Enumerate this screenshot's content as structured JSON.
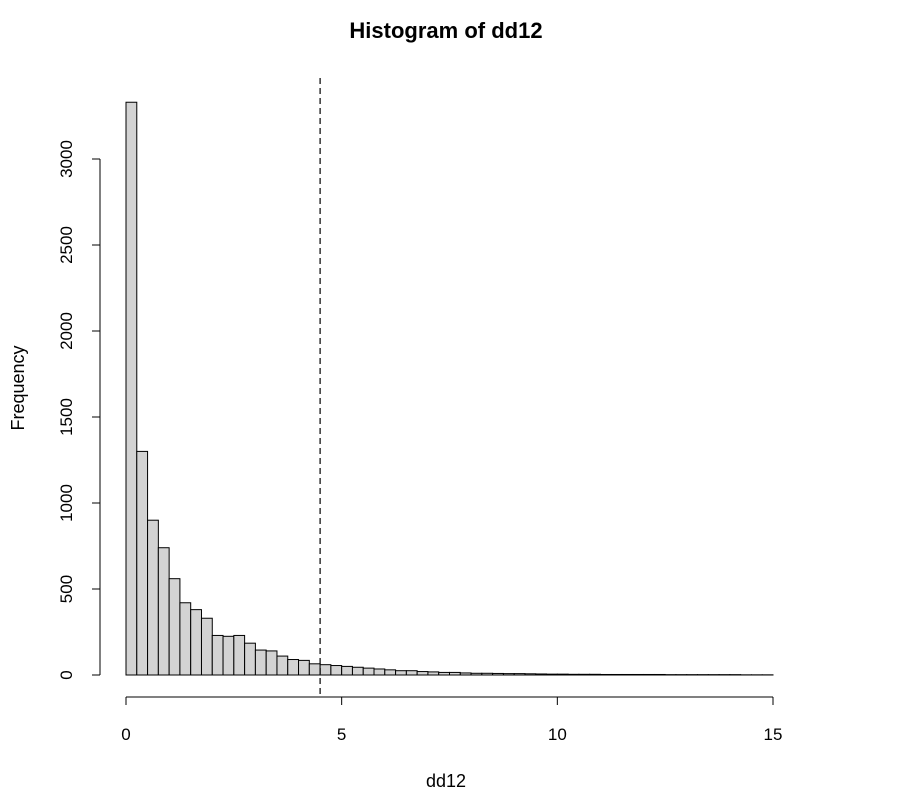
{
  "chart_data": {
    "type": "bar",
    "title": "Histogram of dd12",
    "xlabel": "dd12",
    "ylabel": "Frequency",
    "bin_width": 0.25,
    "bins_start": 0,
    "xlim": [
      0,
      15
    ],
    "ylim": [
      0,
      3000
    ],
    "x_ticks": [
      0,
      5,
      10,
      15
    ],
    "y_ticks": [
      0,
      500,
      1000,
      1500,
      2000,
      2500,
      3000
    ],
    "values": [
      3330,
      1300,
      900,
      740,
      560,
      420,
      380,
      330,
      230,
      225,
      230,
      185,
      145,
      140,
      110,
      90,
      85,
      65,
      60,
      55,
      50,
      45,
      40,
      35,
      30,
      25,
      25,
      20,
      18,
      15,
      15,
      12,
      10,
      10,
      9,
      8,
      8,
      7,
      6,
      5,
      5,
      4,
      4,
      4,
      3,
      3,
      3,
      3,
      3,
      3,
      2,
      2,
      2,
      2,
      2,
      2,
      2,
      1,
      1,
      1
    ],
    "reference_line": {
      "x": 4.5,
      "style": "dashed"
    },
    "colors": {
      "bar_fill": "#d3d3d3",
      "bar_stroke": "#000000",
      "background": "#ffffff"
    },
    "grid": false
  }
}
